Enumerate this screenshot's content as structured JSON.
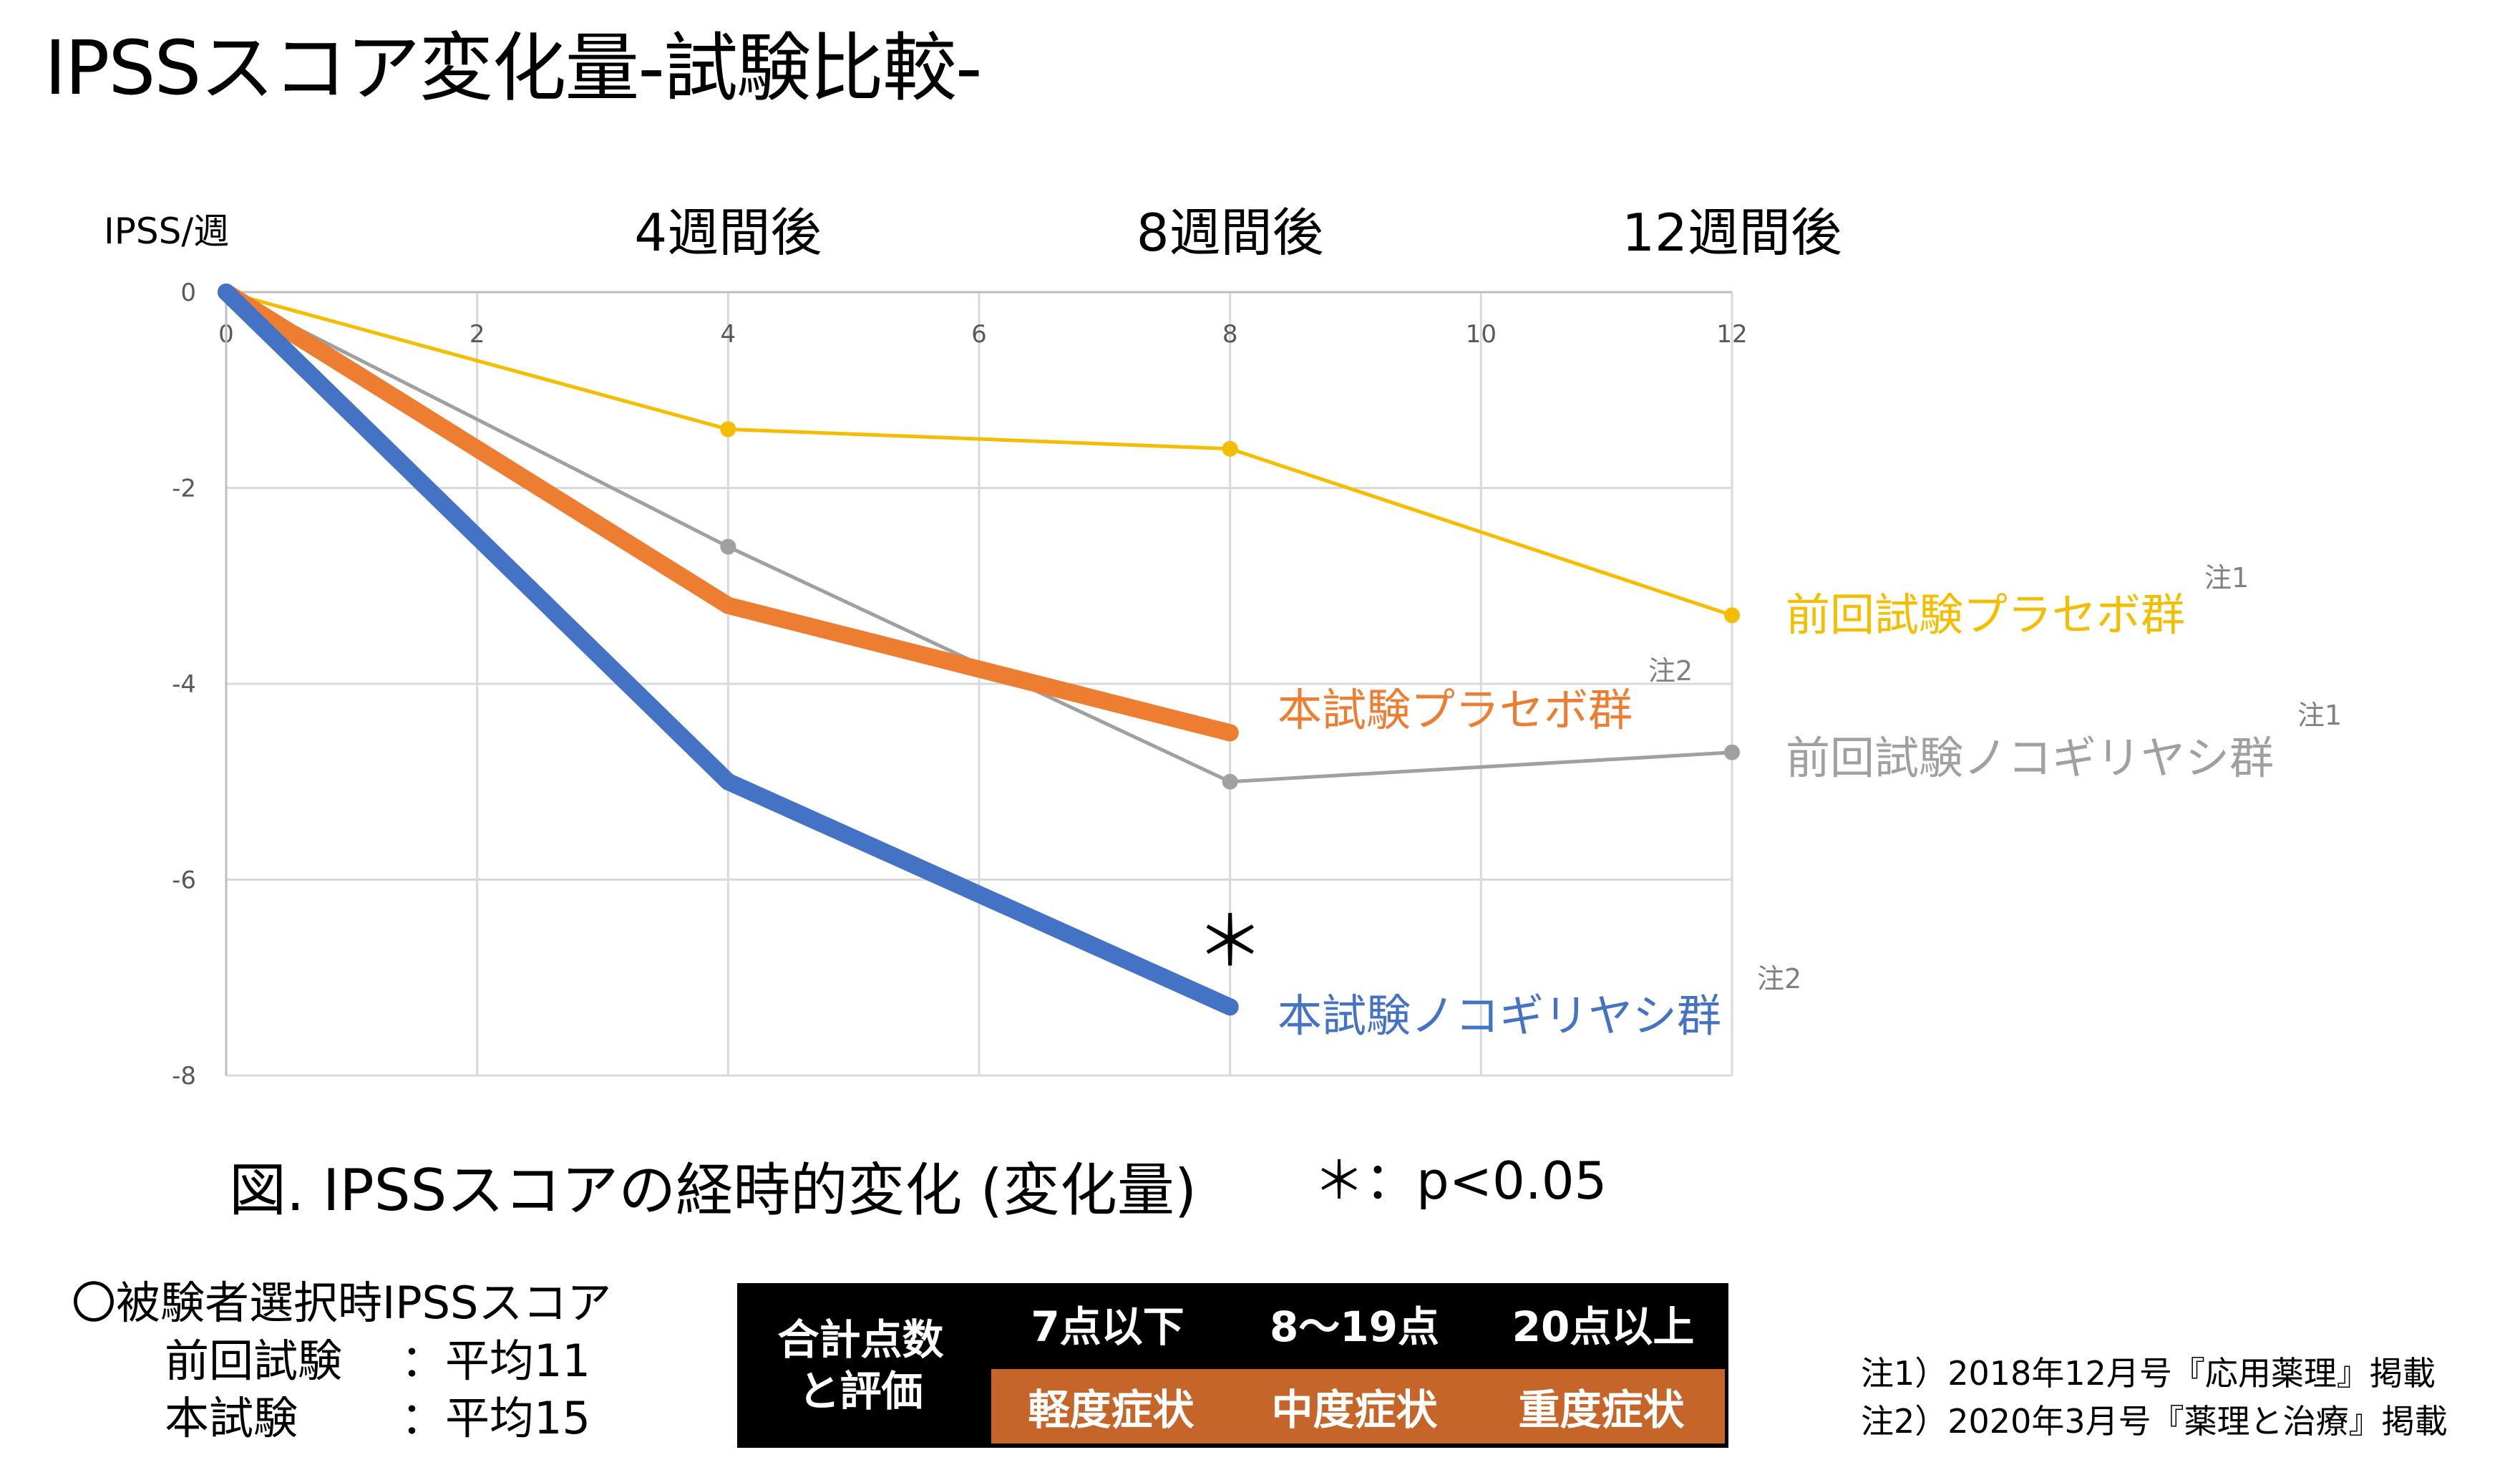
{
  "title": "IPSSスコア変化量‐試験比較‐",
  "chart_data": {
    "type": "line",
    "ylabel": "IPSS/週",
    "xlim": [
      0,
      12
    ],
    "ylim": [
      -8,
      0
    ],
    "x_ticks": [
      "0",
      "2",
      "4",
      "6",
      "8",
      "10",
      "12"
    ],
    "y_ticks": [
      "0",
      "-2",
      "-4",
      "-6",
      "-8"
    ],
    "grid": true,
    "top_labels": [
      {
        "x": 4,
        "label": "4週間後"
      },
      {
        "x": 8,
        "label": "8週間後"
      },
      {
        "x": 12,
        "label": "12週間後"
      }
    ],
    "series": [
      {
        "name": "前回試験プラセボ群",
        "note": "注1",
        "color": "#F5BD00",
        "x": [
          0,
          4,
          8,
          12
        ],
        "values": [
          0,
          -1.4,
          -1.6,
          -3.3
        ]
      },
      {
        "name": "前回試験ノコギリヤシ群",
        "note": "注1",
        "color": "#A0A0A0",
        "x": [
          0,
          4,
          8,
          12
        ],
        "values": [
          0,
          -2.6,
          -5.0,
          -4.7
        ]
      },
      {
        "name": "本試験プラセボ群",
        "note": "注2",
        "color": "#ED7D31",
        "x": [
          0,
          4,
          8
        ],
        "values": [
          0,
          -3.2,
          -4.5
        ]
      },
      {
        "name": "本試験ノコギリヤシ群",
        "note": "注2",
        "color": "#4472C4",
        "x": [
          0,
          4,
          8
        ],
        "values": [
          0,
          -5.0,
          -7.3
        ]
      }
    ],
    "annotations": [
      {
        "x": 8,
        "text": "＊"
      }
    ]
  },
  "caption": "図. IPSSスコアの経時的変化 (変化量)",
  "significance": "＊：p<0.05",
  "baseline": {
    "heading": "〇被験者選択時IPSSスコア",
    "rows": [
      {
        "label": "前回試験",
        "value": "：平均11"
      },
      {
        "label": "本試験",
        "value": "：平均15"
      }
    ]
  },
  "severity_table": {
    "header_line1": "合計点数",
    "header_line2": "と評価",
    "ranges": [
      "7点以下",
      "8～19点",
      "20点以上"
    ],
    "levels": [
      "軽度症状",
      "中度症状",
      "重度症状"
    ],
    "level_color": "#C5652A"
  },
  "notes": [
    "注1）2018年12月号『応用薬理』掲載",
    "注2）2020年3月号『薬理と治療』掲載"
  ]
}
